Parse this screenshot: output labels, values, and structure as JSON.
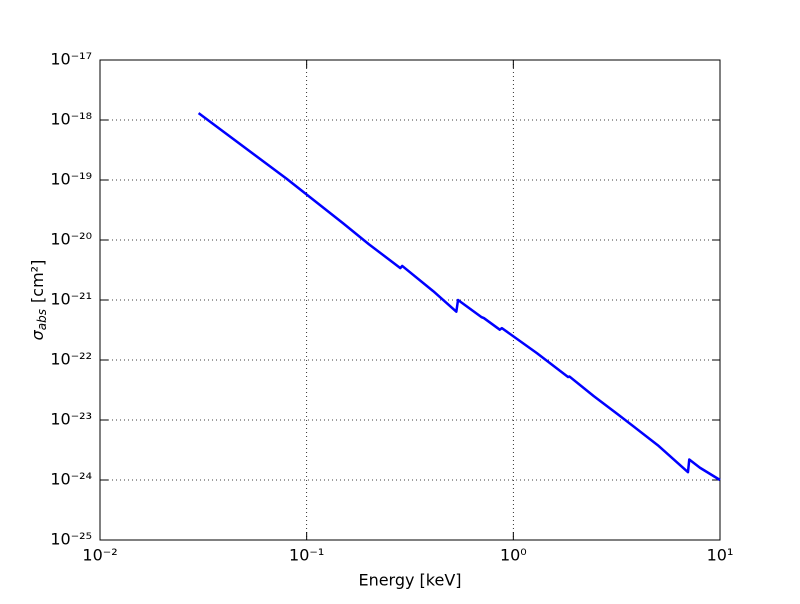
{
  "chart_data": {
    "type": "line",
    "xlabel": "Energy [keV]",
    "ylabel": {
      "symbol": "σ",
      "subscript": "abs",
      "unit": "[cm²]"
    },
    "xscale": "log",
    "yscale": "log",
    "grid": true,
    "xlim": [
      0.01,
      10
    ],
    "ylim": [
      1e-25,
      1e-17
    ],
    "xticks": [
      {
        "value": 0.01,
        "label": "10⁻²"
      },
      {
        "value": 0.1,
        "label": "10⁻¹"
      },
      {
        "value": 1,
        "label": "10⁰"
      },
      {
        "value": 10,
        "label": "10¹"
      }
    ],
    "yticks": [
      {
        "value": 1e-25,
        "label": "10⁻²⁵"
      },
      {
        "value": 1e-24,
        "label": "10⁻²⁴"
      },
      {
        "value": 1e-23,
        "label": "10⁻²³"
      },
      {
        "value": 1e-22,
        "label": "10⁻²²"
      },
      {
        "value": 1e-21,
        "label": "10⁻²¹"
      },
      {
        "value": 1e-20,
        "label": "10⁻²⁰"
      },
      {
        "value": 1e-19,
        "label": "10⁻¹⁹"
      },
      {
        "value": 1e-18,
        "label": "10⁻¹⁸"
      },
      {
        "value": 1e-17,
        "label": "10⁻¹⁷"
      }
    ],
    "x": [
      0.03,
      0.08,
      0.15,
      0.2,
      0.284,
      0.29,
      0.41,
      0.53,
      0.54,
      0.7,
      0.72,
      0.86,
      0.88,
      1.3,
      1.84,
      1.87,
      2.45,
      3.2,
      5,
      7.0,
      7.1,
      8.0,
      10
    ],
    "series": [
      {
        "color": "#0000ff",
        "values": [
          1.3e-18,
          1.05e-19,
          1.9e-20,
          8.5e-21,
          3.4e-21,
          3.7e-21,
          1.4e-21,
          6.4e-22,
          1e-21,
          5.2e-22,
          5e-22,
          3.2e-22,
          3.4e-22,
          1.3e-22,
          5.2e-23,
          5.3e-23,
          2.5e-23,
          1.25e-23,
          3.8e-24,
          1.35e-24,
          2.2e-24,
          1.6e-24,
          1e-24
        ]
      }
    ]
  }
}
